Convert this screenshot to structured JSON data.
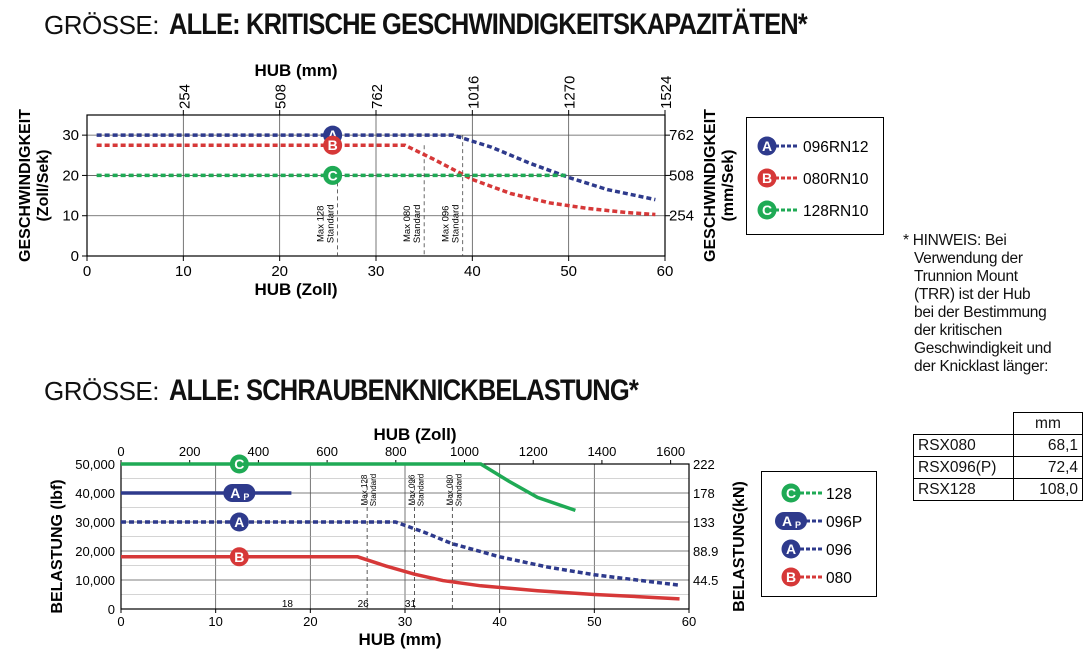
{
  "chart_data": [
    {
      "type": "line",
      "title_prefix": "GRÖSSE:",
      "title": "ALLE: KRITISCHE GESCHWINDIGKEITSKAPAZITÄTEN*",
      "xlabel": "HUB (Zoll)",
      "x2label": "HUB (mm)",
      "ylabel_lines": [
        "GESCHWINDIGKEIT",
        "(Zoll/Sek)"
      ],
      "y2label_lines": [
        "GESCHWINDIGKEIT",
        "(mm/Sek)"
      ],
      "xlim": [
        0,
        60
      ],
      "ylim": [
        0,
        35
      ],
      "xticks": [
        "0",
        "10",
        "20",
        "30",
        "40",
        "50",
        "60"
      ],
      "yticks": [
        "0",
        "10",
        "20",
        "30"
      ],
      "x2ticks": [
        "254",
        "508",
        "762",
        "1016",
        "1270",
        "1524"
      ],
      "y2ticks": [
        "254",
        "508",
        "762"
      ],
      "grid": true,
      "series": [
        {
          "name": "096RN12",
          "marker": "A",
          "color": "#2e3a8c",
          "x": [
            1,
            38,
            42,
            46,
            50,
            54,
            59
          ],
          "y": [
            30,
            30,
            27,
            23,
            19.5,
            16.5,
            14
          ]
        },
        {
          "name": "080RN10",
          "marker": "B",
          "color": "#d63838",
          "x": [
            1,
            33,
            36,
            40,
            44,
            48,
            52,
            56,
            59
          ],
          "y": [
            27.5,
            27.5,
            24,
            19,
            15.5,
            13.2,
            11.8,
            10.8,
            10.3
          ]
        },
        {
          "name": "128RN10",
          "marker": "C",
          "color": "#1faa55",
          "x": [
            1,
            50
          ],
          "y": [
            20,
            20
          ]
        }
      ],
      "annotations": [
        {
          "x": 26,
          "y_from": 0,
          "y_to": 20,
          "label1": "Max 128",
          "label2": "Standard"
        },
        {
          "x": 35,
          "y_from": 0,
          "y_to": 27.5,
          "label1": "Max 080",
          "label2": "Standard"
        },
        {
          "x": 39,
          "y_from": 0,
          "y_to": 30,
          "label1": "Max 096",
          "label2": "Standard"
        }
      ],
      "legend": [
        {
          "marker": "A",
          "label": "096RN12",
          "color": "#2e3a8c"
        },
        {
          "marker": "B",
          "label": "080RN10",
          "color": "#d63838"
        },
        {
          "marker": "C",
          "label": "128RN10",
          "color": "#1faa55"
        }
      ],
      "legend_position": "right"
    },
    {
      "type": "line",
      "title_prefix": "GRÖSSE:",
      "title": "ALLE: SCHRAUBENKNICKBELASTUNG*",
      "xlabel": "HUB (mm)",
      "x2label": "HUB (Zoll)",
      "ylabel": "BELASTUNG (lbf)",
      "y2label": "BELASTUNG(kN)",
      "xlim": [
        0,
        60
      ],
      "ylim": [
        0,
        50000
      ],
      "xticks": [
        "0",
        "10",
        "20",
        "30",
        "40",
        "50",
        "60"
      ],
      "extra_xticks": [
        "18",
        "26",
        "31"
      ],
      "x2ticks": [
        "0",
        "200",
        "400",
        "600",
        "800",
        "1000",
        "1200",
        "1400",
        "1600"
      ],
      "yticks": [
        "0",
        "10,000",
        "20,000",
        "30,000",
        "40,000",
        "50,000"
      ],
      "y2ticks": [
        "44.5",
        "88.9",
        "133",
        "178",
        "222"
      ],
      "grid": true,
      "series": [
        {
          "name": "128",
          "marker": "C",
          "color": "#1faa55",
          "dashed": false,
          "x": [
            0,
            38,
            41,
            44,
            48
          ],
          "y": [
            50000,
            50000,
            44000,
            38500,
            34000
          ]
        },
        {
          "name": "096P",
          "marker": "AP",
          "color": "#2e3a8c",
          "dashed": false,
          "x": [
            0,
            18
          ],
          "y": [
            40000,
            40000
          ]
        },
        {
          "name": "096",
          "marker": "A",
          "color": "#2e3a8c",
          "dashed": true,
          "x": [
            0,
            29,
            32,
            35,
            40,
            45,
            50,
            55,
            59
          ],
          "y": [
            30000,
            30000,
            26500,
            22500,
            18000,
            14500,
            11800,
            9800,
            8200
          ]
        },
        {
          "name": "080",
          "marker": "B",
          "color": "#d63838",
          "dashed": false,
          "x": [
            0,
            25,
            28,
            31,
            34,
            38,
            44,
            50,
            55,
            59
          ],
          "y": [
            18000,
            18000,
            14800,
            12000,
            9800,
            8000,
            6300,
            5000,
            4200,
            3500
          ]
        }
      ],
      "annotations": [
        {
          "x": 26,
          "label1": "Max 128",
          "label2": "Standard"
        },
        {
          "x": 31,
          "label1": "Max 096",
          "label2": "Standard"
        },
        {
          "x": 35,
          "label1": "Max 080",
          "label2": "Standard"
        }
      ],
      "legend": [
        {
          "marker": "C",
          "label": "128",
          "color": "#1faa55"
        },
        {
          "marker": "AP",
          "label": "096P",
          "color": "#2e3a8c"
        },
        {
          "marker": "A",
          "label": "096",
          "color": "#2e3a8c"
        },
        {
          "marker": "B",
          "label": "080",
          "color": "#d63838"
        }
      ],
      "legend_position": "right"
    }
  ],
  "note": {
    "lines": [
      "* HINWEIS: Bei",
      "Verwendung der",
      "Trunnion Mount",
      "(TRR) ist der Hub",
      "bei der Bestimmung",
      "der kritischen",
      "Geschwindigkeit und",
      "der Knicklast länger:"
    ]
  },
  "mm_table": {
    "header": "mm",
    "rows": [
      {
        "name": "RSX080",
        "value": "68,1"
      },
      {
        "name": "RSX096(P)",
        "value": "72,4"
      },
      {
        "name": "RSX128",
        "value": "108,0"
      }
    ]
  },
  "marker_sub": "P"
}
